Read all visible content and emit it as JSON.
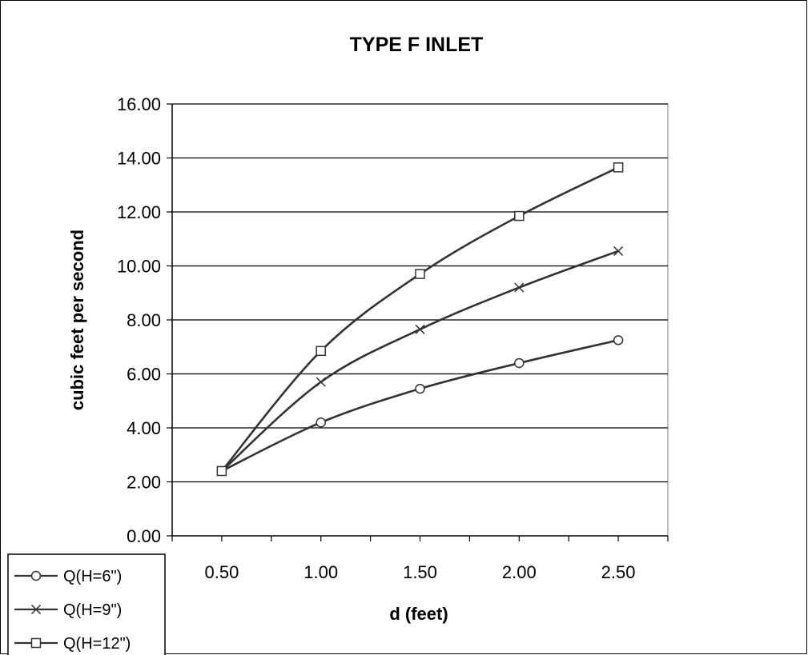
{
  "chart_data": {
    "type": "line",
    "title": "TYPE F INLET",
    "xlabel": "d (feet)",
    "ylabel": "cubic feet per second",
    "x": [
      "0.50",
      "1.00",
      "1.50",
      "2.00",
      "2.50"
    ],
    "x_values": [
      0.5,
      1.0,
      1.5,
      2.0,
      2.5
    ],
    "xlim": [
      0.25,
      2.75
    ],
    "ylim": [
      0,
      16
    ],
    "yticks": [
      "0.00",
      "2.00",
      "4.00",
      "6.00",
      "8.00",
      "10.00",
      "12.00",
      "14.00",
      "16.00"
    ],
    "ytick_values": [
      0,
      2,
      4,
      6,
      8,
      10,
      12,
      14,
      16
    ],
    "grid": "horizontal",
    "legend_position": "bottom-left",
    "series": [
      {
        "name": "Q(H=6\")",
        "marker": "circle",
        "values": [
          2.4,
          4.2,
          5.45,
          6.4,
          7.25
        ]
      },
      {
        "name": "Q(H=9\")",
        "marker": "x",
        "values": [
          2.4,
          5.7,
          7.65,
          9.2,
          10.55
        ]
      },
      {
        "name": "Q(H=12\")",
        "marker": "square",
        "values": [
          2.4,
          6.85,
          9.7,
          11.85,
          13.65
        ]
      }
    ],
    "line_color": "#333333"
  }
}
